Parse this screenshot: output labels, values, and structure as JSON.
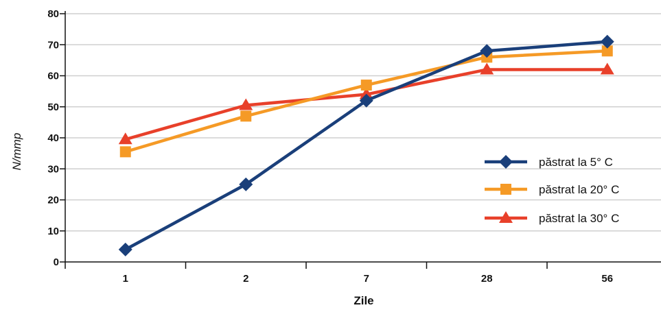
{
  "chart_data": {
    "type": "line",
    "title": "",
    "xlabel": "Zile",
    "ylabel": "N/mmp",
    "categories": [
      "1",
      "2",
      "7",
      "28",
      "56"
    ],
    "y_ticks": [
      "0",
      "10",
      "20",
      "30",
      "40",
      "50",
      "60",
      "70",
      "80"
    ],
    "ylim": [
      0,
      80
    ],
    "grid": true,
    "legend_position": "right",
    "series": [
      {
        "name": "păstrat la 5° C",
        "values": [
          4,
          25,
          52,
          68,
          71
        ],
        "color": "#1a3f7a",
        "marker": "diamond"
      },
      {
        "name": "păstrat la 20° C",
        "values": [
          35.5,
          47,
          57,
          66,
          68
        ],
        "color": "#f59a26",
        "marker": "square"
      },
      {
        "name": "păstrat la 30° C",
        "values": [
          39.5,
          50.5,
          54,
          62,
          62
        ],
        "color": "#e8402a",
        "marker": "triangle"
      }
    ]
  }
}
